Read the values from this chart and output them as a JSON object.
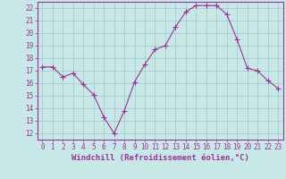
{
  "x": [
    0,
    1,
    2,
    3,
    4,
    5,
    6,
    7,
    8,
    9,
    10,
    11,
    12,
    13,
    14,
    15,
    16,
    17,
    18,
    19,
    20,
    21,
    22,
    23
  ],
  "y": [
    17.3,
    17.3,
    16.5,
    16.8,
    15.9,
    15.1,
    13.3,
    12.0,
    13.8,
    16.1,
    17.5,
    18.7,
    19.0,
    20.5,
    21.7,
    22.2,
    22.2,
    22.2,
    21.5,
    19.5,
    17.2,
    17.0,
    16.2,
    15.6
  ],
  "line_color": "#993399",
  "marker": "+",
  "marker_size": 4,
  "bg_color": "#c8e8e8",
  "grid_color": "#a0c8c8",
  "xlabel": "Windchill (Refroidissement éolien,°C)",
  "xlim": [
    -0.5,
    23.5
  ],
  "ylim": [
    11.5,
    22.5
  ],
  "yticks": [
    12,
    13,
    14,
    15,
    16,
    17,
    18,
    19,
    20,
    21,
    22
  ],
  "xticks": [
    0,
    1,
    2,
    3,
    4,
    5,
    6,
    7,
    8,
    9,
    10,
    11,
    12,
    13,
    14,
    15,
    16,
    17,
    18,
    19,
    20,
    21,
    22,
    23
  ],
  "tick_label_fontsize": 5.5,
  "xlabel_fontsize": 6.5,
  "label_color": "#993399",
  "axis_color": "#993399"
}
